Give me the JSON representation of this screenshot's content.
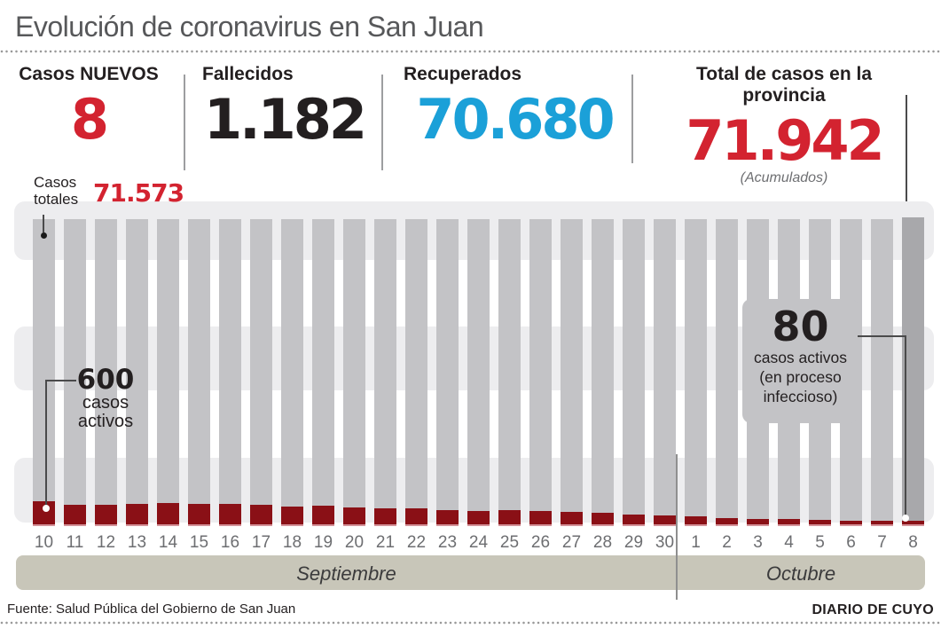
{
  "title": "Evolución de coronavirus en San Juan",
  "stats": {
    "nuevos": {
      "label": "Casos NUEVOS",
      "value": "8"
    },
    "fallecidos": {
      "label": "Fallecidos",
      "value": "1.182"
    },
    "recuperados": {
      "label": "Recuperados",
      "value": "70.680"
    },
    "total": {
      "label": "Total de casos en la provincia",
      "value": "71.942",
      "sub": "(Acumulados)"
    }
  },
  "annotations": {
    "casos_totales_line1": "Casos",
    "casos_totales_line2": "totales",
    "casos_totales_value": "71.573",
    "activos_inicio": {
      "value": "600",
      "line1": "casos",
      "line2": "activos"
    },
    "activos_fin": {
      "value": "80",
      "line1": "casos activos",
      "line2": "(en proceso",
      "line3": "infeccioso)"
    }
  },
  "months": {
    "september": "Septiembre",
    "october": "Octubre"
  },
  "footer": {
    "source": "Fuente: Salud Pública del Gobierno de San Juan",
    "credit": "DIARIO DE CUYO"
  },
  "colors": {
    "accent_red": "#d32330",
    "accent_blue": "#1ba0d8",
    "bar_total_gray": "#c3c3c6",
    "bar_total_gray_last": "#a8a8ab",
    "bar_active_red": "#8a1016",
    "background_band": "#ededef",
    "month_band": "#c8c6b9",
    "title_gray": "#57585a"
  },
  "chart_data": {
    "type": "bar",
    "categories": [
      "10",
      "11",
      "12",
      "13",
      "14",
      "15",
      "16",
      "17",
      "18",
      "19",
      "20",
      "21",
      "22",
      "23",
      "24",
      "25",
      "26",
      "27",
      "28",
      "29",
      "30",
      "1",
      "2",
      "3",
      "4",
      "5",
      "6",
      "7",
      "8"
    ],
    "month_bands": [
      {
        "label": "Septiembre",
        "days": "10-30"
      },
      {
        "label": "Octubre",
        "days": "1-8"
      }
    ],
    "series": [
      {
        "name": "Casos totales",
        "color": "#c3c3c6",
        "values": [
          71573,
          71586,
          71599,
          71613,
          71626,
          71639,
          71652,
          71665,
          71678,
          71692,
          71705,
          71718,
          71731,
          71744,
          71757,
          71771,
          71784,
          71797,
          71810,
          71823,
          71836,
          71850,
          71863,
          71876,
          71889,
          71902,
          71915,
          71929,
          71942
        ]
      },
      {
        "name": "Casos activos (en proceso infeccioso)",
        "color": "#8a1016",
        "values": [
          600,
          515,
          510,
          530,
          550,
          535,
          530,
          510,
          470,
          485,
          445,
          425,
          420,
          360,
          335,
          370,
          350,
          330,
          310,
          265,
          225,
          200,
          160,
          135,
          130,
          110,
          95,
          90,
          80
        ]
      }
    ],
    "annotations": [
      {
        "target": "Casos totales 10 Septiembre",
        "text": "Casos totales 71.573"
      },
      {
        "target": "Casos activos 10 Septiembre",
        "text": "600 casos activos"
      },
      {
        "target": "Casos activos 8 Octubre",
        "text": "80 casos activos (en proceso infeccioso)"
      },
      {
        "target": "Casos totales 8 Octubre",
        "text": "71.942 (Acumulados)"
      }
    ],
    "ylim_active": [
      0,
      600
    ],
    "grid": "horizontal light-gray bands",
    "legend": "none"
  }
}
